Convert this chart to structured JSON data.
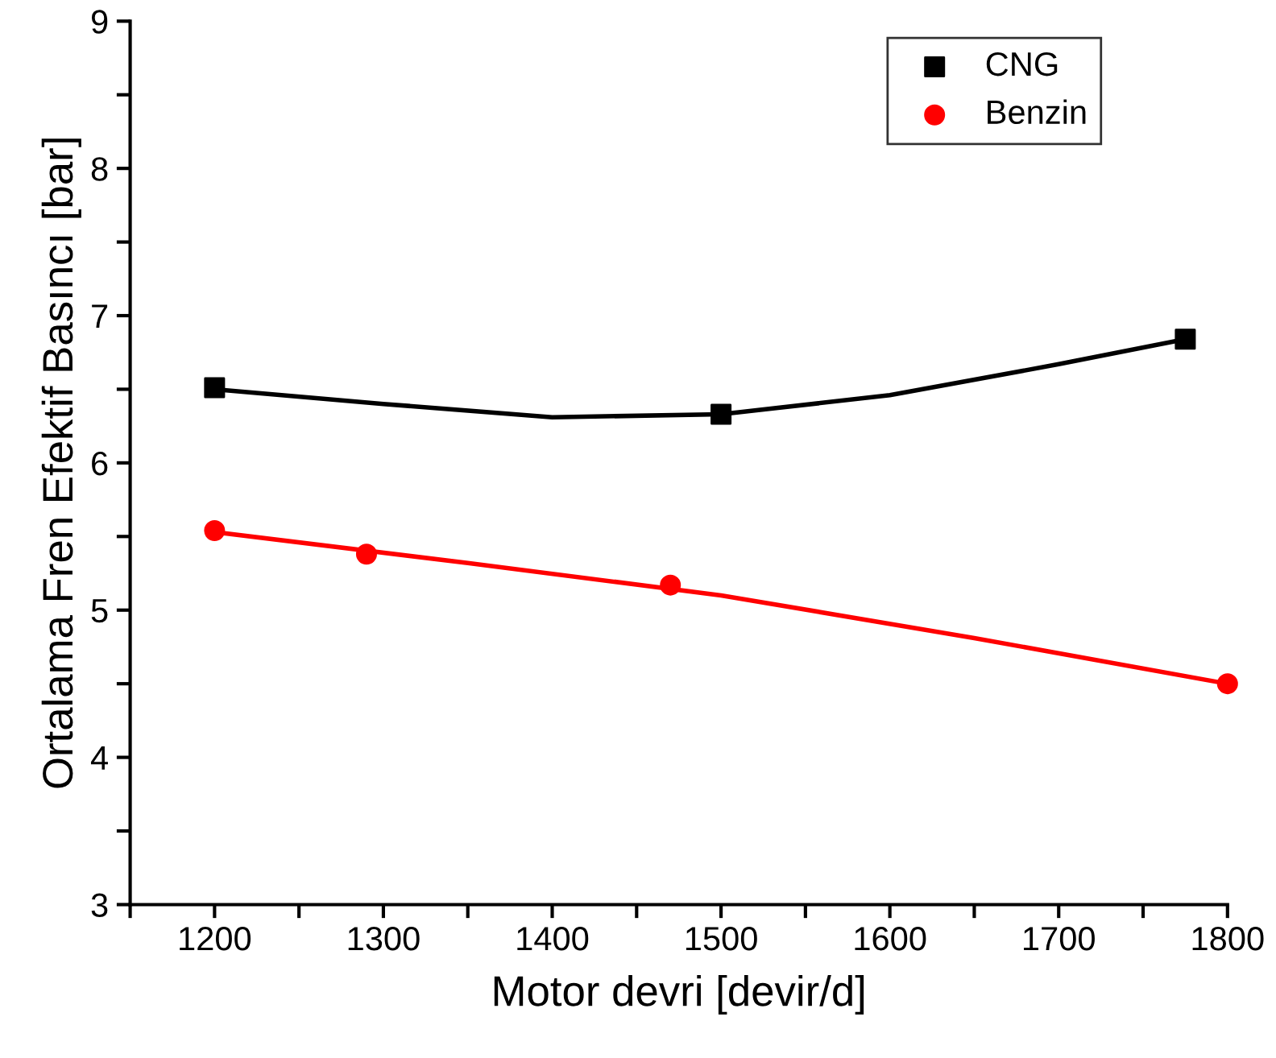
{
  "chart_data": {
    "type": "scatter",
    "xlabel": "Motor devri [devir/d]",
    "ylabel": "Ortalama Fren Efektif Basıncı [bar]",
    "xlim": [
      1150,
      1800
    ],
    "ylim": [
      3,
      9
    ],
    "xticks": [
      {
        "value": 1150,
        "label": null
      },
      1200,
      {
        "value": 1250,
        "label": null
      },
      1300,
      {
        "value": 1350,
        "label": null
      },
      1400,
      {
        "value": 1450,
        "label": null
      },
      1500,
      {
        "value": 1550,
        "label": null
      },
      1600,
      {
        "value": 1650,
        "label": null
      },
      1700,
      {
        "value": 1750,
        "label": null
      },
      1800
    ],
    "yticks": [
      3,
      {
        "value": 3.5,
        "label": null
      },
      4,
      {
        "value": 4.5,
        "label": null
      },
      5,
      {
        "value": 5.5,
        "label": null
      },
      6,
      {
        "value": 6.5,
        "label": null
      },
      7,
      {
        "value": 7.5,
        "label": null
      },
      8,
      {
        "value": 8.5,
        "label": null
      },
      9
    ],
    "legend": "top right",
    "grid": false,
    "series": [
      {
        "name": "CNG",
        "marker": "square",
        "color": "#000000",
        "x": [
          1200,
          1500,
          1775
        ],
        "values": [
          6.51,
          6.33,
          6.84
        ]
      },
      {
        "name": "Benzin",
        "marker": "circle",
        "color": "#ff0000",
        "x": [
          1200,
          1290,
          1470,
          1800
        ],
        "values": [
          5.54,
          5.38,
          5.17,
          4.5
        ]
      },
      {
        "type": "line",
        "marker": "none",
        "color": "#000000",
        "x": [
          1200,
          1300,
          1400,
          1500,
          1600,
          1700,
          1775
        ],
        "values": [
          6.5,
          6.4,
          6.31,
          6.33,
          6.46,
          6.67,
          6.84
        ]
      },
      {
        "type": "line",
        "marker": "none",
        "color": "#ff0000",
        "x": [
          1200,
          1350,
          1500,
          1650,
          1800
        ],
        "values": [
          5.53,
          5.32,
          5.1,
          4.81,
          4.5
        ]
      }
    ]
  }
}
